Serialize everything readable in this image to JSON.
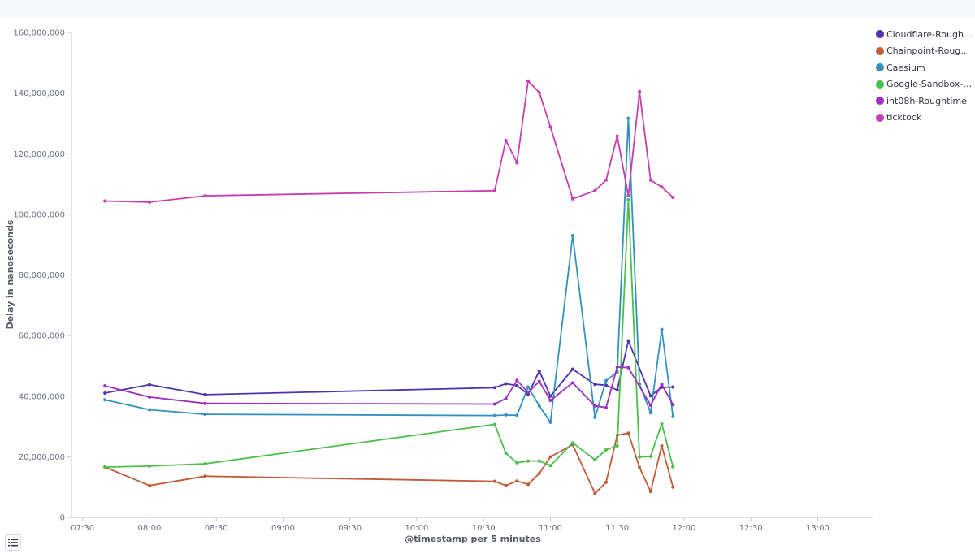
{
  "icons": {
    "legend_toggle": "list-icon"
  },
  "colors": {
    "axis": "#c2c7cf",
    "tick_text": "#69707d",
    "grid_line": "#eef0f3"
  },
  "chart_data": {
    "type": "line",
    "title": "",
    "xlabel": "@timestamp per 5 minutes",
    "ylabel": "Delay in nanoseconds",
    "xlim": [
      "07:25",
      "13:25"
    ],
    "ylim": [
      0,
      160000000
    ],
    "x_ticks": [
      "07:30",
      "08:00",
      "08:30",
      "09:00",
      "09:30",
      "10:00",
      "10:30",
      "11:00",
      "11:30",
      "12:00",
      "12:30",
      "13:00"
    ],
    "y_ticks": [
      0,
      20000000,
      40000000,
      60000000,
      80000000,
      100000000,
      120000000,
      140000000,
      160000000
    ],
    "y_tick_labels": [
      "0",
      "20,000,000",
      "40,000,000",
      "60,000,000",
      "80,000,000",
      "100,000,000",
      "120,000,000",
      "140,000,000",
      "160,000,000"
    ],
    "grid": false,
    "legend_position": "right",
    "series": [
      {
        "name": "Cloudflare-Roughtime",
        "color": "#4f33b3",
        "points": [
          [
            "07:40",
            41000000
          ],
          [
            "08:00",
            43800000
          ],
          [
            "08:25",
            40500000
          ],
          [
            "10:35",
            42800000
          ],
          [
            "10:40",
            44100000
          ],
          [
            "10:45",
            43500000
          ],
          [
            "10:50",
            40600000
          ],
          [
            "10:55",
            48300000
          ],
          [
            "11:00",
            40000000
          ],
          [
            "11:10",
            48900000
          ],
          [
            "11:20",
            43900000
          ],
          [
            "11:25",
            43600000
          ],
          [
            "11:30",
            42000000
          ],
          [
            "11:35",
            58300000
          ],
          [
            "11:45",
            40100000
          ],
          [
            "11:50",
            42900000
          ],
          [
            "11:55",
            43000000
          ]
        ]
      },
      {
        "name": "Chainpoint-Roughtime",
        "color": "#c05c37",
        "points": [
          [
            "07:40",
            16600000
          ],
          [
            "08:00",
            10500000
          ],
          [
            "08:25",
            13600000
          ],
          [
            "10:35",
            11900000
          ],
          [
            "10:40",
            10500000
          ],
          [
            "10:45",
            12000000
          ],
          [
            "10:50",
            10900000
          ],
          [
            "10:55",
            14500000
          ],
          [
            "11:00",
            20000000
          ],
          [
            "11:10",
            24000000
          ],
          [
            "11:20",
            7900000
          ],
          [
            "11:25",
            11600000
          ],
          [
            "11:30",
            27100000
          ],
          [
            "11:35",
            27800000
          ],
          [
            "11:40",
            16500000
          ],
          [
            "11:45",
            8500000
          ],
          [
            "11:50",
            23600000
          ],
          [
            "11:55",
            10000000
          ]
        ]
      },
      {
        "name": "Caesium",
        "color": "#3390bf",
        "points": [
          [
            "07:40",
            38800000
          ],
          [
            "08:00",
            35500000
          ],
          [
            "08:25",
            34000000
          ],
          [
            "10:35",
            33600000
          ],
          [
            "10:40",
            33800000
          ],
          [
            "10:45",
            33700000
          ],
          [
            "10:50",
            43000000
          ],
          [
            "10:55",
            36800000
          ],
          [
            "11:00",
            31400000
          ],
          [
            "11:10",
            93000000
          ],
          [
            "11:20",
            33000000
          ],
          [
            "11:25",
            45100000
          ],
          [
            "11:30",
            48000000
          ],
          [
            "11:35",
            131700000
          ],
          [
            "11:40",
            44000000
          ],
          [
            "11:45",
            34500000
          ],
          [
            "11:50",
            62000000
          ],
          [
            "11:55",
            33300000
          ]
        ]
      },
      {
        "name": "Google-Sandbox-Roughtime",
        "color": "#4cbf4a",
        "points": [
          [
            "07:40",
            16600000
          ],
          [
            "08:00",
            16900000
          ],
          [
            "08:25",
            17700000
          ],
          [
            "10:35",
            30700000
          ],
          [
            "10:40",
            21200000
          ],
          [
            "10:45",
            18000000
          ],
          [
            "10:50",
            18600000
          ],
          [
            "10:55",
            18600000
          ],
          [
            "11:00",
            17100000
          ],
          [
            "11:10",
            24600000
          ],
          [
            "11:20",
            19000000
          ],
          [
            "11:25",
            22300000
          ],
          [
            "11:30",
            23600000
          ],
          [
            "11:35",
            104800000
          ],
          [
            "11:40",
            19900000
          ],
          [
            "11:45",
            20100000
          ],
          [
            "11:50",
            30900000
          ],
          [
            "11:55",
            16700000
          ]
        ]
      },
      {
        "name": "int08h-Roughtime",
        "color": "#9c2fc2",
        "points": [
          [
            "07:40",
            43400000
          ],
          [
            "08:00",
            39700000
          ],
          [
            "08:25",
            37600000
          ],
          [
            "10:35",
            37400000
          ],
          [
            "10:40",
            39200000
          ],
          [
            "10:45",
            45200000
          ],
          [
            "10:50",
            41200000
          ],
          [
            "10:55",
            44900000
          ],
          [
            "11:00",
            38600000
          ],
          [
            "11:10",
            44400000
          ],
          [
            "11:20",
            36800000
          ],
          [
            "11:25",
            36200000
          ],
          [
            "11:30",
            49600000
          ],
          [
            "11:35",
            49400000
          ],
          [
            "11:45",
            37000000
          ],
          [
            "11:50",
            43900000
          ],
          [
            "11:55",
            37200000
          ]
        ]
      },
      {
        "name": "ticktock",
        "color": "#c73eb0",
        "points": [
          [
            "07:40",
            104400000
          ],
          [
            "08:00",
            104000000
          ],
          [
            "08:25",
            106100000
          ],
          [
            "10:35",
            107800000
          ],
          [
            "10:40",
            124400000
          ],
          [
            "10:45",
            117000000
          ],
          [
            "10:50",
            144000000
          ],
          [
            "10:55",
            140200000
          ],
          [
            "11:00",
            128800000
          ],
          [
            "11:10",
            105100000
          ],
          [
            "11:20",
            107800000
          ],
          [
            "11:25",
            111300000
          ],
          [
            "11:30",
            125800000
          ],
          [
            "11:35",
            106100000
          ],
          [
            "11:40",
            140500000
          ],
          [
            "11:45",
            111300000
          ],
          [
            "11:50",
            109000000
          ],
          [
            "11:55",
            105600000
          ]
        ]
      }
    ]
  }
}
